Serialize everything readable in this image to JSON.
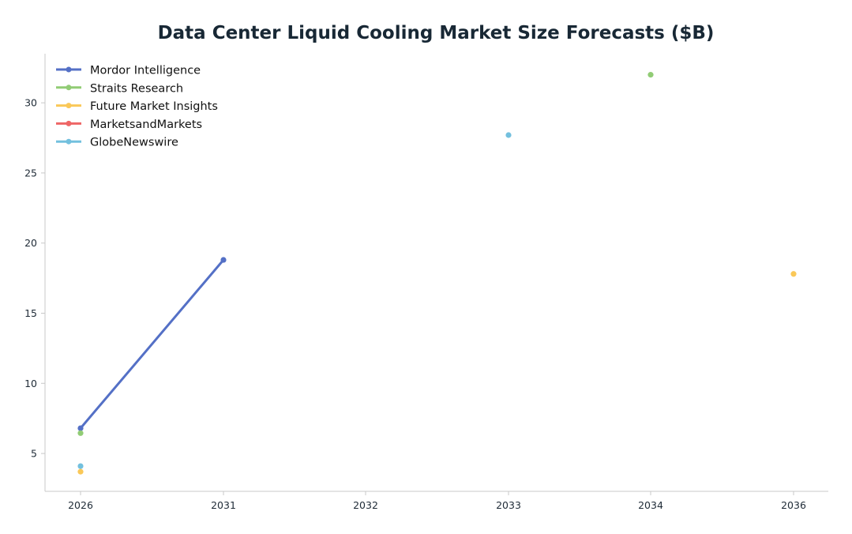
{
  "chart_data": {
    "type": "line",
    "title": "Data Center Liquid Cooling Market Size Forecasts ($B)",
    "xlabel": "",
    "ylabel": "",
    "x_ticks": [
      "2026",
      "2031",
      "2032",
      "2033",
      "2034",
      "2036"
    ],
    "y_ticks": [
      "5",
      "10",
      "15",
      "20",
      "25",
      "30"
    ],
    "ylim": [
      2.3,
      33.5
    ],
    "grid": false,
    "legend_position": "top-left",
    "series": [
      {
        "name": "Mordor Intelligence",
        "color": "#5470c6",
        "points": [
          {
            "x": "2026",
            "y": 6.8
          },
          {
            "x": "2031",
            "y": 18.8
          }
        ]
      },
      {
        "name": "Straits Research",
        "color": "#91cc75",
        "points": [
          {
            "x": "2026",
            "y": 6.45
          },
          {
            "x": "2034",
            "y": 32.0
          }
        ]
      },
      {
        "name": "Future Market Insights",
        "color": "#fac858",
        "points": [
          {
            "x": "2026",
            "y": 3.7
          },
          {
            "x": "2036",
            "y": 17.8
          }
        ]
      },
      {
        "name": "MarketsandMarkets",
        "color": "#ee6666",
        "points": []
      },
      {
        "name": "GlobeNewswire",
        "color": "#73c0de",
        "points": [
          {
            "x": "2026",
            "y": 4.1
          },
          {
            "x": "2033",
            "y": 27.7
          }
        ]
      }
    ]
  }
}
